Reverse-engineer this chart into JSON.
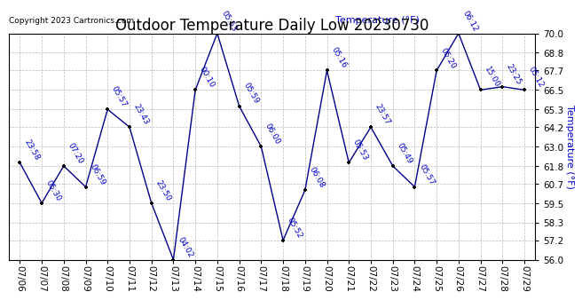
{
  "title": "Outdoor Temperature Daily Low 20230730",
  "ylabel": "Temperature (°F)",
  "copyright": "Copyright 2023 Cartronics.com",
  "background_color": "#ffffff",
  "line_color": "#00008B",
  "point_color": "#000000",
  "label_color": "#0000CC",
  "grid_color": "#b0b0b0",
  "ylim": [
    56.0,
    70.0
  ],
  "yticks": [
    56.0,
    57.2,
    58.3,
    59.5,
    60.7,
    61.8,
    63.0,
    64.2,
    65.3,
    66.5,
    67.7,
    68.8,
    70.0
  ],
  "dates": [
    "07/06",
    "07/07",
    "07/08",
    "07/09",
    "07/10",
    "07/11",
    "07/12",
    "07/13",
    "07/14",
    "07/15",
    "07/16",
    "07/17",
    "07/18",
    "07/19",
    "07/20",
    "07/21",
    "07/22",
    "07/23",
    "07/24",
    "07/25",
    "07/26",
    "07/27",
    "07/28",
    "07/29"
  ],
  "values": [
    62.0,
    59.5,
    61.8,
    60.5,
    65.3,
    64.2,
    59.5,
    56.0,
    66.5,
    70.0,
    65.5,
    63.0,
    57.2,
    60.3,
    67.7,
    62.0,
    64.2,
    61.8,
    60.5,
    67.7,
    70.0,
    66.5,
    66.7,
    66.5
  ],
  "labels": [
    "23:58",
    "05:30",
    "07:20",
    "06:59",
    "05:57",
    "23:43",
    "23:50",
    "04:02",
    "00:10",
    "05:53",
    "05:59",
    "06:00",
    "05:52",
    "06:08",
    "05:16",
    "05:53",
    "23:57",
    "05:49",
    "05:57",
    "05:20",
    "06:12",
    "15:00",
    "23:25",
    "05:12"
  ],
  "title_fontsize": 12,
  "label_fontsize": 6.5,
  "tick_fontsize": 7.5,
  "ylabel_fontsize": 8,
  "copyright_fontsize": 6.5
}
